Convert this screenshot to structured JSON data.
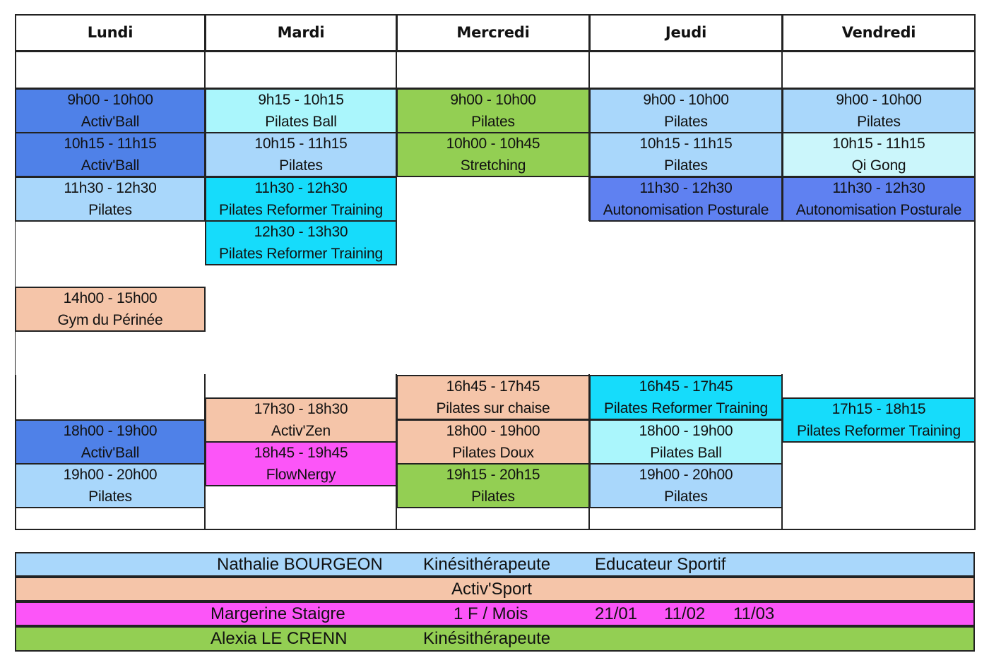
{
  "days": [
    "Lundi",
    "Mardi",
    "Mercredi",
    "Jeudi",
    "Vendredi"
  ],
  "colors": {
    "ball_blue": "#4f81e8",
    "light_blue": "#a9d7fb",
    "aqua": "#aaf6fc",
    "cyan": "#16dcfb",
    "green": "#93cf53",
    "peach": "#f5c5a9",
    "magenta": "#fc55f8",
    "pale_cyan": "#cbf6fb",
    "royal_blue": "#5f81f1"
  },
  "sessions": [
    {
      "day": 0,
      "start": "9:00",
      "end": "10:00",
      "time": "9h00 - 10h00",
      "name": "Activ'Ball",
      "color": "#4f81e8"
    },
    {
      "day": 0,
      "start": "10:15",
      "end": "11:15",
      "time": "10h15 - 11h15",
      "name": "Activ'Ball",
      "color": "#4f81e8"
    },
    {
      "day": 0,
      "start": "11:30",
      "end": "12:30",
      "time": "11h30 - 12h30",
      "name": "Pilates",
      "color": "#a9d7fb"
    },
    {
      "day": 0,
      "start": "14:00",
      "end": "15:00",
      "time": "14h00 - 15h00",
      "name": "Gym du Périnée",
      "color": "#f5c5a9"
    },
    {
      "day": 0,
      "start": "18:00",
      "end": "19:00",
      "time": "18h00 - 19h00",
      "name": "Activ'Ball",
      "color": "#4f81e8"
    },
    {
      "day": 0,
      "start": "19:00",
      "end": "20:00",
      "time": "19h00 - 20h00",
      "name": "Pilates",
      "color": "#a9d7fb"
    },
    {
      "day": 1,
      "start": "9:15",
      "end": "10:15",
      "time": "9h15 - 10h15",
      "name": "Pilates Ball",
      "color": "#aaf6fc"
    },
    {
      "day": 1,
      "start": "10:15",
      "end": "11:15",
      "time": "10h15 - 11h15",
      "name": "Pilates",
      "color": "#a9d7fb"
    },
    {
      "day": 1,
      "start": "11:30",
      "end": "12:30",
      "time": "11h30 - 12h30",
      "name": "Pilates Reformer Training",
      "color": "#16dcfb"
    },
    {
      "day": 1,
      "start": "12:30",
      "end": "13:30",
      "time": "12h30 - 13h30",
      "name": "Pilates Reformer Training",
      "color": "#16dcfb"
    },
    {
      "day": 1,
      "start": "17:30",
      "end": "18:30",
      "time": "17h30 - 18h30",
      "name": "Activ'Zen",
      "color": "#f5c5a9"
    },
    {
      "day": 1,
      "start": "18:45",
      "end": "19:45",
      "time": "18h45 - 19h45",
      "name": "FlowNergy",
      "color": "#fc55f8"
    },
    {
      "day": 2,
      "start": "9:00",
      "end": "10:00",
      "time": "9h00 - 10h00",
      "name": "Pilates",
      "color": "#93cf53"
    },
    {
      "day": 2,
      "start": "10:00",
      "end": "10:45",
      "time": "10h00 - 10h45",
      "name": "Stretching",
      "color": "#93cf53"
    },
    {
      "day": 2,
      "start": "16:45",
      "end": "17:45",
      "time": "16h45 - 17h45",
      "name": "Pilates sur chaise",
      "color": "#f5c5a9"
    },
    {
      "day": 2,
      "start": "18:00",
      "end": "19:00",
      "time": "18h00 - 19h00",
      "name": "Pilates Doux",
      "color": "#f5c5a9"
    },
    {
      "day": 2,
      "start": "19:15",
      "end": "20:15",
      "time": "19h15 - 20h15",
      "name": "Pilates",
      "color": "#93cf53"
    },
    {
      "day": 3,
      "start": "9:00",
      "end": "10:00",
      "time": "9h00 - 10h00",
      "name": "Pilates",
      "color": "#a9d7fb"
    },
    {
      "day": 3,
      "start": "10:15",
      "end": "11:15",
      "time": "10h15 - 11h15",
      "name": "Pilates",
      "color": "#a9d7fb"
    },
    {
      "day": 3,
      "start": "11:30",
      "end": "12:30",
      "time": "11h30 - 12h30",
      "name": "Autonomisation Posturale",
      "color": "#5f81f1"
    },
    {
      "day": 3,
      "start": "16:45",
      "end": "17:45",
      "time": "16h45 - 17h45",
      "name": "Pilates Reformer Training",
      "color": "#16dcfb"
    },
    {
      "day": 3,
      "start": "18:00",
      "end": "19:00",
      "time": "18h00 - 19h00",
      "name": "Pilates Ball",
      "color": "#aaf6fc"
    },
    {
      "day": 3,
      "start": "19:00",
      "end": "20:00",
      "time": "19h00 - 20h00",
      "name": "Pilates",
      "color": "#a9d7fb"
    },
    {
      "day": 4,
      "start": "9:00",
      "end": "10:00",
      "time": "9h00 - 10h00",
      "name": "Pilates",
      "color": "#a9d7fb"
    },
    {
      "day": 4,
      "start": "10:15",
      "end": "11:15",
      "time": "10h15 - 11h15",
      "name": "Qi Gong",
      "color": "#cbf6fb"
    },
    {
      "day": 4,
      "start": "11:30",
      "end": "12:30",
      "time": "11h30 - 12h30",
      "name": "Autonomisation Posturale",
      "color": "#5f81f1"
    },
    {
      "day": 4,
      "start": "17:15",
      "end": "18:15",
      "time": "17h15 - 18h15",
      "name": "Pilates Reformer Training",
      "color": "#16dcfb"
    }
  ],
  "legend": [
    {
      "color": "#a9d7fb",
      "texts": [
        "Nathalie BOURGEON",
        "Kinésithérapeute",
        "Educateur Sportif"
      ]
    },
    {
      "color": "#f5c5a9",
      "texts": [
        "Activ'Sport"
      ]
    },
    {
      "color": "#fc55f8",
      "texts": [
        "Margerine Staigre",
        "1 F / Mois",
        "21/01",
        "11/02",
        "11/03"
      ]
    },
    {
      "color": "#93cf53",
      "texts": [
        "Alexia LE CRENN",
        "Kinésithérapeute"
      ]
    }
  ]
}
